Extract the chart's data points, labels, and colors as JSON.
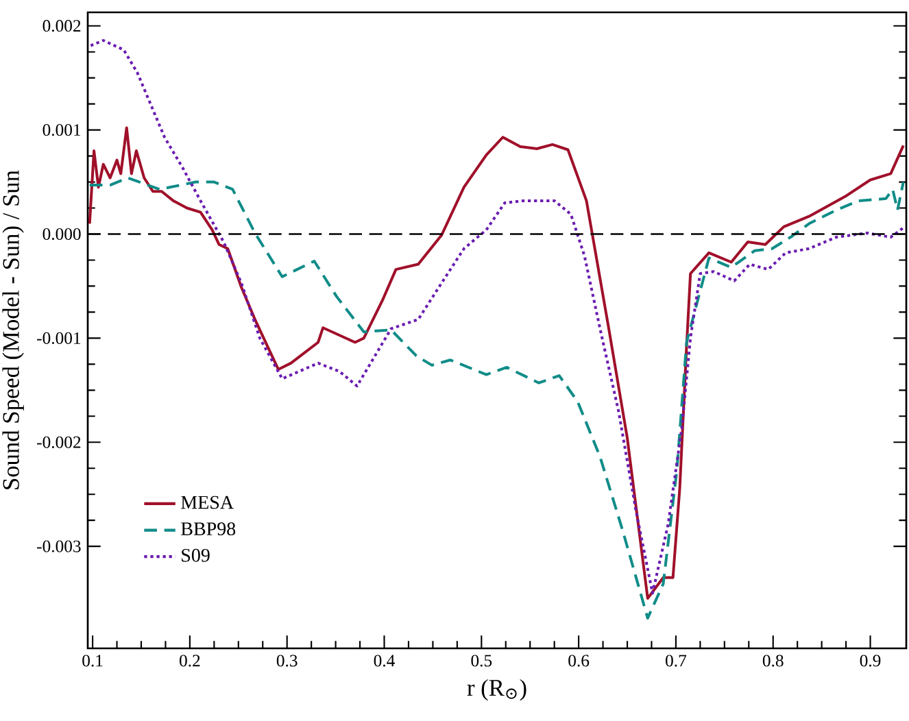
{
  "chart_data": {
    "type": "line",
    "xlabel": "r (R$_{⊙}$)",
    "ylabel": "Sound Speed (Model - Sun) / Sun",
    "xlim": [
      0.095,
      0.937
    ],
    "ylim": [
      -0.00398,
      0.00213
    ],
    "xticks": [
      0.1,
      0.2,
      0.3,
      0.4,
      0.5,
      0.6,
      0.7,
      0.8,
      0.9
    ],
    "yticks": [
      {
        "value": -0.003,
        "label": "-0.003"
      },
      {
        "value": -0.002,
        "label": "-0.002"
      },
      {
        "value": -0.001,
        "label": "-0.001"
      },
      {
        "value": 0,
        "label": "0.000"
      },
      {
        "value": 0.001,
        "label": "0.001"
      },
      {
        "value": 0.002,
        "label": "0.002"
      }
    ],
    "legend": "bottom left",
    "grid": false,
    "marker": "none",
    "ref_lines": [
      {
        "axis": "y",
        "value": 0,
        "color": "#000000",
        "line_style": "dashed"
      }
    ],
    "series": [
      {
        "name": "MESA",
        "color": "#a0102a",
        "line_style": "solid",
        "x": [
          0.0969,
          0.1014,
          0.106,
          0.111,
          0.118,
          0.125,
          0.129,
          0.135,
          0.14,
          0.145,
          0.153,
          0.162,
          0.171,
          0.183,
          0.197,
          0.211,
          0.223,
          0.23,
          0.239,
          0.253,
          0.267,
          0.291,
          0.304,
          0.332,
          0.337,
          0.37,
          0.379,
          0.398,
          0.412,
          0.435,
          0.459,
          0.482,
          0.505,
          0.522,
          0.54,
          0.557,
          0.573,
          0.589,
          0.608,
          0.617,
          0.631,
          0.65,
          0.671,
          0.687,
          0.697,
          0.704,
          0.711,
          0.715,
          0.734,
          0.757,
          0.774,
          0.792,
          0.811,
          0.837,
          0.874,
          0.9,
          0.921,
          0.934
        ],
        "values": [
          0.0001,
          0.0008,
          0.00045,
          0.00067,
          0.00054,
          0.00071,
          0.00058,
          0.00102,
          0.00058,
          0.0008,
          0.00054,
          0.00041,
          0.00041,
          0.00032,
          0.00025,
          0.00021,
          4e-05,
          -0.0001,
          -0.00014,
          -0.00051,
          -0.00082,
          -0.0013,
          -0.00124,
          -0.00104,
          -0.0009,
          -0.00104,
          -0.001,
          -0.00064,
          -0.00034,
          -0.00029,
          -1e-05,
          0.00045,
          0.00076,
          0.00093,
          0.00084,
          0.00082,
          0.00086,
          0.00081,
          0.00032,
          -0.00016,
          -0.00091,
          -0.00196,
          -0.0035,
          -0.0033,
          -0.0033,
          -0.00244,
          -0.00108,
          -0.00038,
          -0.00018,
          -0.00027,
          -7.5e-05,
          -0.0001,
          7e-05,
          0.00017,
          0.00036,
          0.00052,
          0.00058,
          0.00085
        ]
      },
      {
        "name": "BBP98",
        "color": "#108c88",
        "line_style": "dashed",
        "x": [
          0.097,
          0.118,
          0.136,
          0.169,
          0.206,
          0.225,
          0.244,
          0.267,
          0.295,
          0.328,
          0.351,
          0.379,
          0.407,
          0.433,
          0.449,
          0.468,
          0.505,
          0.526,
          0.559,
          0.58,
          0.599,
          0.622,
          0.645,
          0.671,
          0.687,
          0.701,
          0.711,
          0.734,
          0.757,
          0.781,
          0.799,
          0.818,
          0.837,
          0.865,
          0.888,
          0.916,
          0.923,
          0.928,
          0.934
        ],
        "values": [
          0.00047,
          0.00047,
          0.00054,
          0.00043,
          0.0005,
          0.0005,
          0.00043,
          1e-05,
          -0.00041,
          -0.00026,
          -0.0006,
          -0.00094,
          -0.00092,
          -0.00117,
          -0.00126,
          -0.00121,
          -0.00135,
          -0.00128,
          -0.00143,
          -0.00136,
          -0.00161,
          -0.00214,
          -0.00284,
          -0.00369,
          -0.00336,
          -0.00227,
          -0.00104,
          -0.00023,
          -0.00032,
          -0.00016,
          -0.00014,
          -3e-05,
          0.0001,
          0.00023,
          0.00032,
          0.00034,
          0.00043,
          0.00023,
          0.0005
        ]
      },
      {
        "name": "S09",
        "color": "#6a1cb0",
        "line_style": "dotted",
        "x": [
          0.098,
          0.111,
          0.132,
          0.146,
          0.16,
          0.174,
          0.193,
          0.211,
          0.235,
          0.253,
          0.272,
          0.295,
          0.332,
          0.354,
          0.372,
          0.393,
          0.407,
          0.435,
          0.459,
          0.482,
          0.505,
          0.524,
          0.543,
          0.575,
          0.592,
          0.606,
          0.622,
          0.641,
          0.659,
          0.676,
          0.692,
          0.706,
          0.715,
          0.725,
          0.739,
          0.76,
          0.776,
          0.795,
          0.813,
          0.837,
          0.865,
          0.897,
          0.921,
          0.934
        ],
        "values": [
          0.00181,
          0.00186,
          0.00177,
          0.00155,
          0.00124,
          0.00093,
          0.00063,
          0.00032,
          -8e-05,
          -0.00047,
          -0.001,
          -0.00139,
          -0.00124,
          -0.00132,
          -0.00146,
          -0.00113,
          -0.00091,
          -0.00082,
          -0.00047,
          -0.00014,
          4e-05,
          0.0003,
          0.00032,
          0.00032,
          0.00019,
          -0.00021,
          -0.00091,
          -0.0017,
          -0.00266,
          -0.00345,
          -0.00279,
          -0.00187,
          -0.001,
          -0.00038,
          -0.00036,
          -0.00045,
          -0.00029,
          -0.00034,
          -0.00018,
          -0.00014,
          -3e-05,
          1e-05,
          -3e-05,
          6e-05
        ]
      }
    ]
  }
}
